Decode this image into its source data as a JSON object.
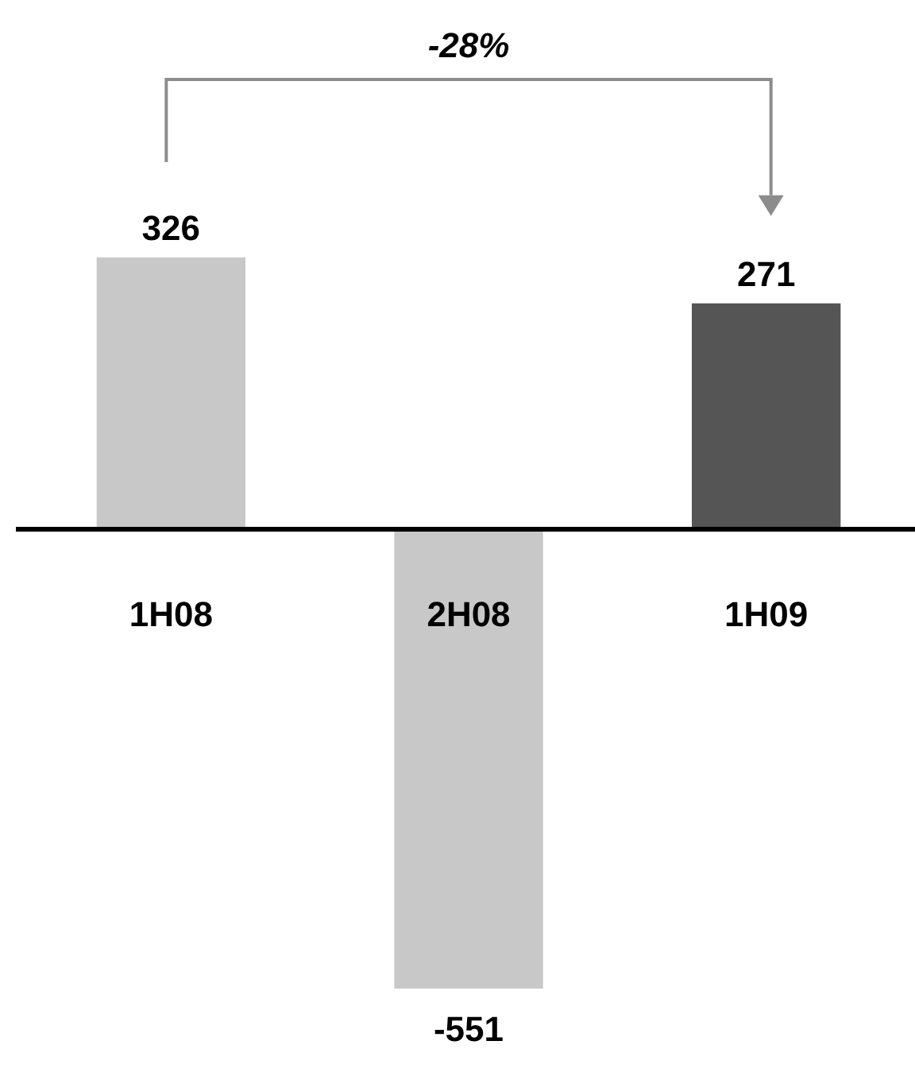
{
  "chart_data": {
    "type": "bar",
    "categories": [
      "1H08",
      "2H08",
      "1H09"
    ],
    "values": [
      326,
      -551,
      271
    ],
    "colors": [
      "#c8c8c8",
      "#c8c8c8",
      "#555555"
    ],
    "data_labels": true,
    "annotations": [
      "-28%"
    ]
  }
}
